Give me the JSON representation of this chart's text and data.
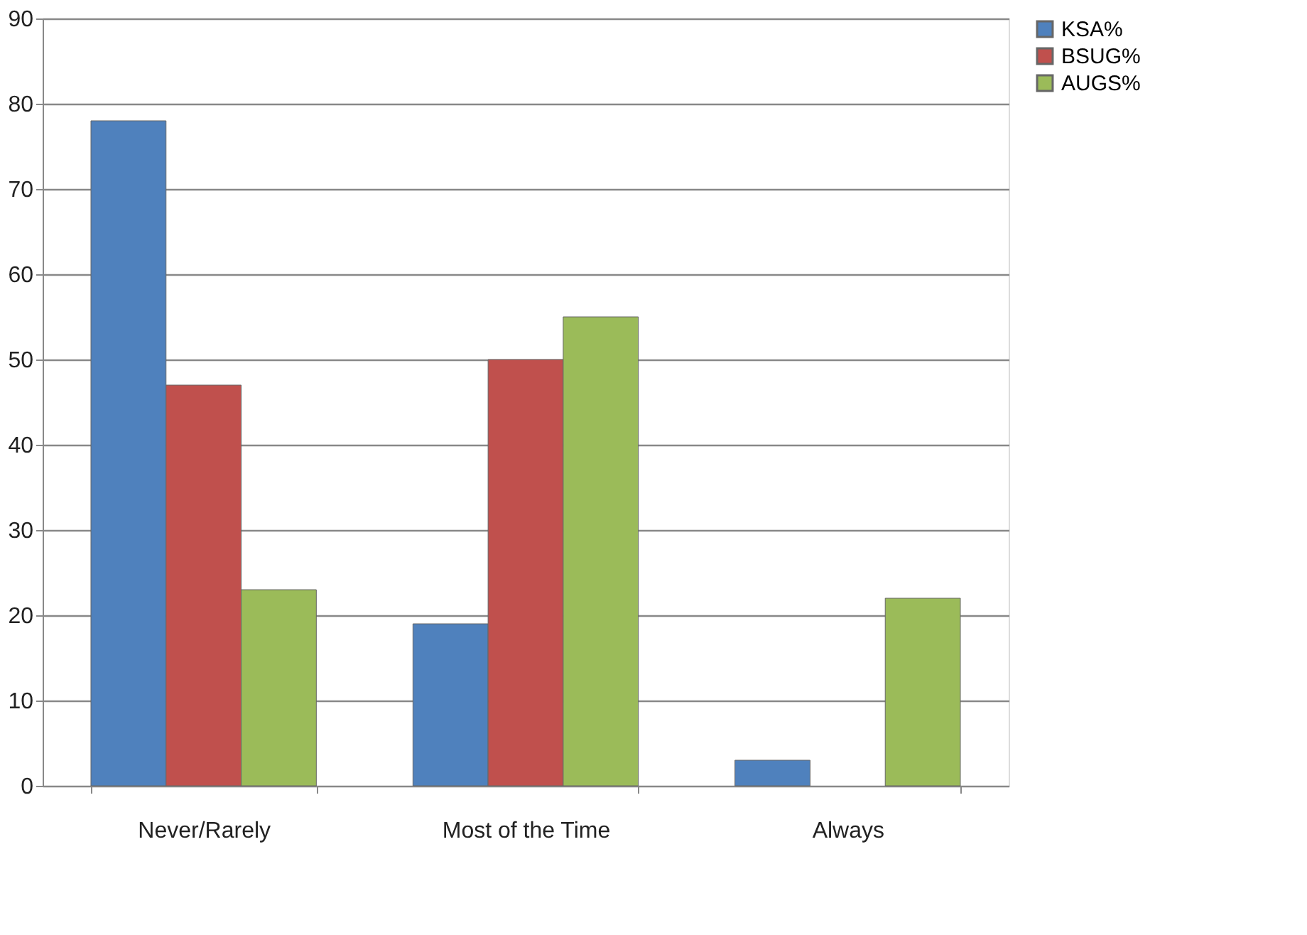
{
  "chart_data": {
    "type": "bar",
    "categories": [
      "Never/Rarely",
      "Most of the Time",
      "Always"
    ],
    "series": [
      {
        "name": "KSA%",
        "color": "#4f81bd",
        "values": [
          78,
          19,
          3
        ]
      },
      {
        "name": "BSUG%",
        "color": "#c0504d",
        "values": [
          47,
          50,
          null
        ]
      },
      {
        "name": "AUGS%",
        "color": "#9bbb59",
        "values": [
          23,
          55,
          22
        ]
      }
    ],
    "ylim": [
      0,
      90
    ],
    "yticks": [
      0,
      10,
      20,
      30,
      40,
      50,
      60,
      70,
      80,
      90
    ],
    "grid": "y",
    "legend": "right"
  }
}
